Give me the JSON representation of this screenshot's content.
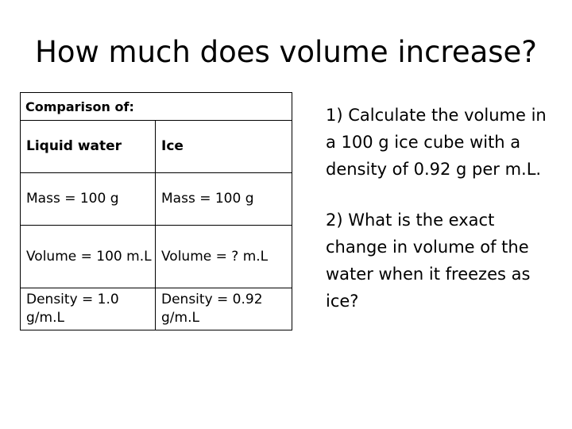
{
  "slide": {
    "title": "How much does volume increase?"
  },
  "table": {
    "header": "Comparison of:",
    "rows": [
      {
        "left": "Liquid water",
        "right": "Ice"
      },
      {
        "left": "Mass = 100 g",
        "right": "Mass = 100 g"
      },
      {
        "left": "Volume = 100 m.L",
        "right": "Volume = ? m.L"
      },
      {
        "left": "Density = 1.0 g/m.L",
        "right": "Density = 0.92 g/m.L"
      }
    ]
  },
  "questions": [
    "1) Calculate the volume in a 100 g ice cube with a density of 0.92 g per m.L.",
    "2) What is the exact change in volume of the water when it freezes as ice?"
  ]
}
